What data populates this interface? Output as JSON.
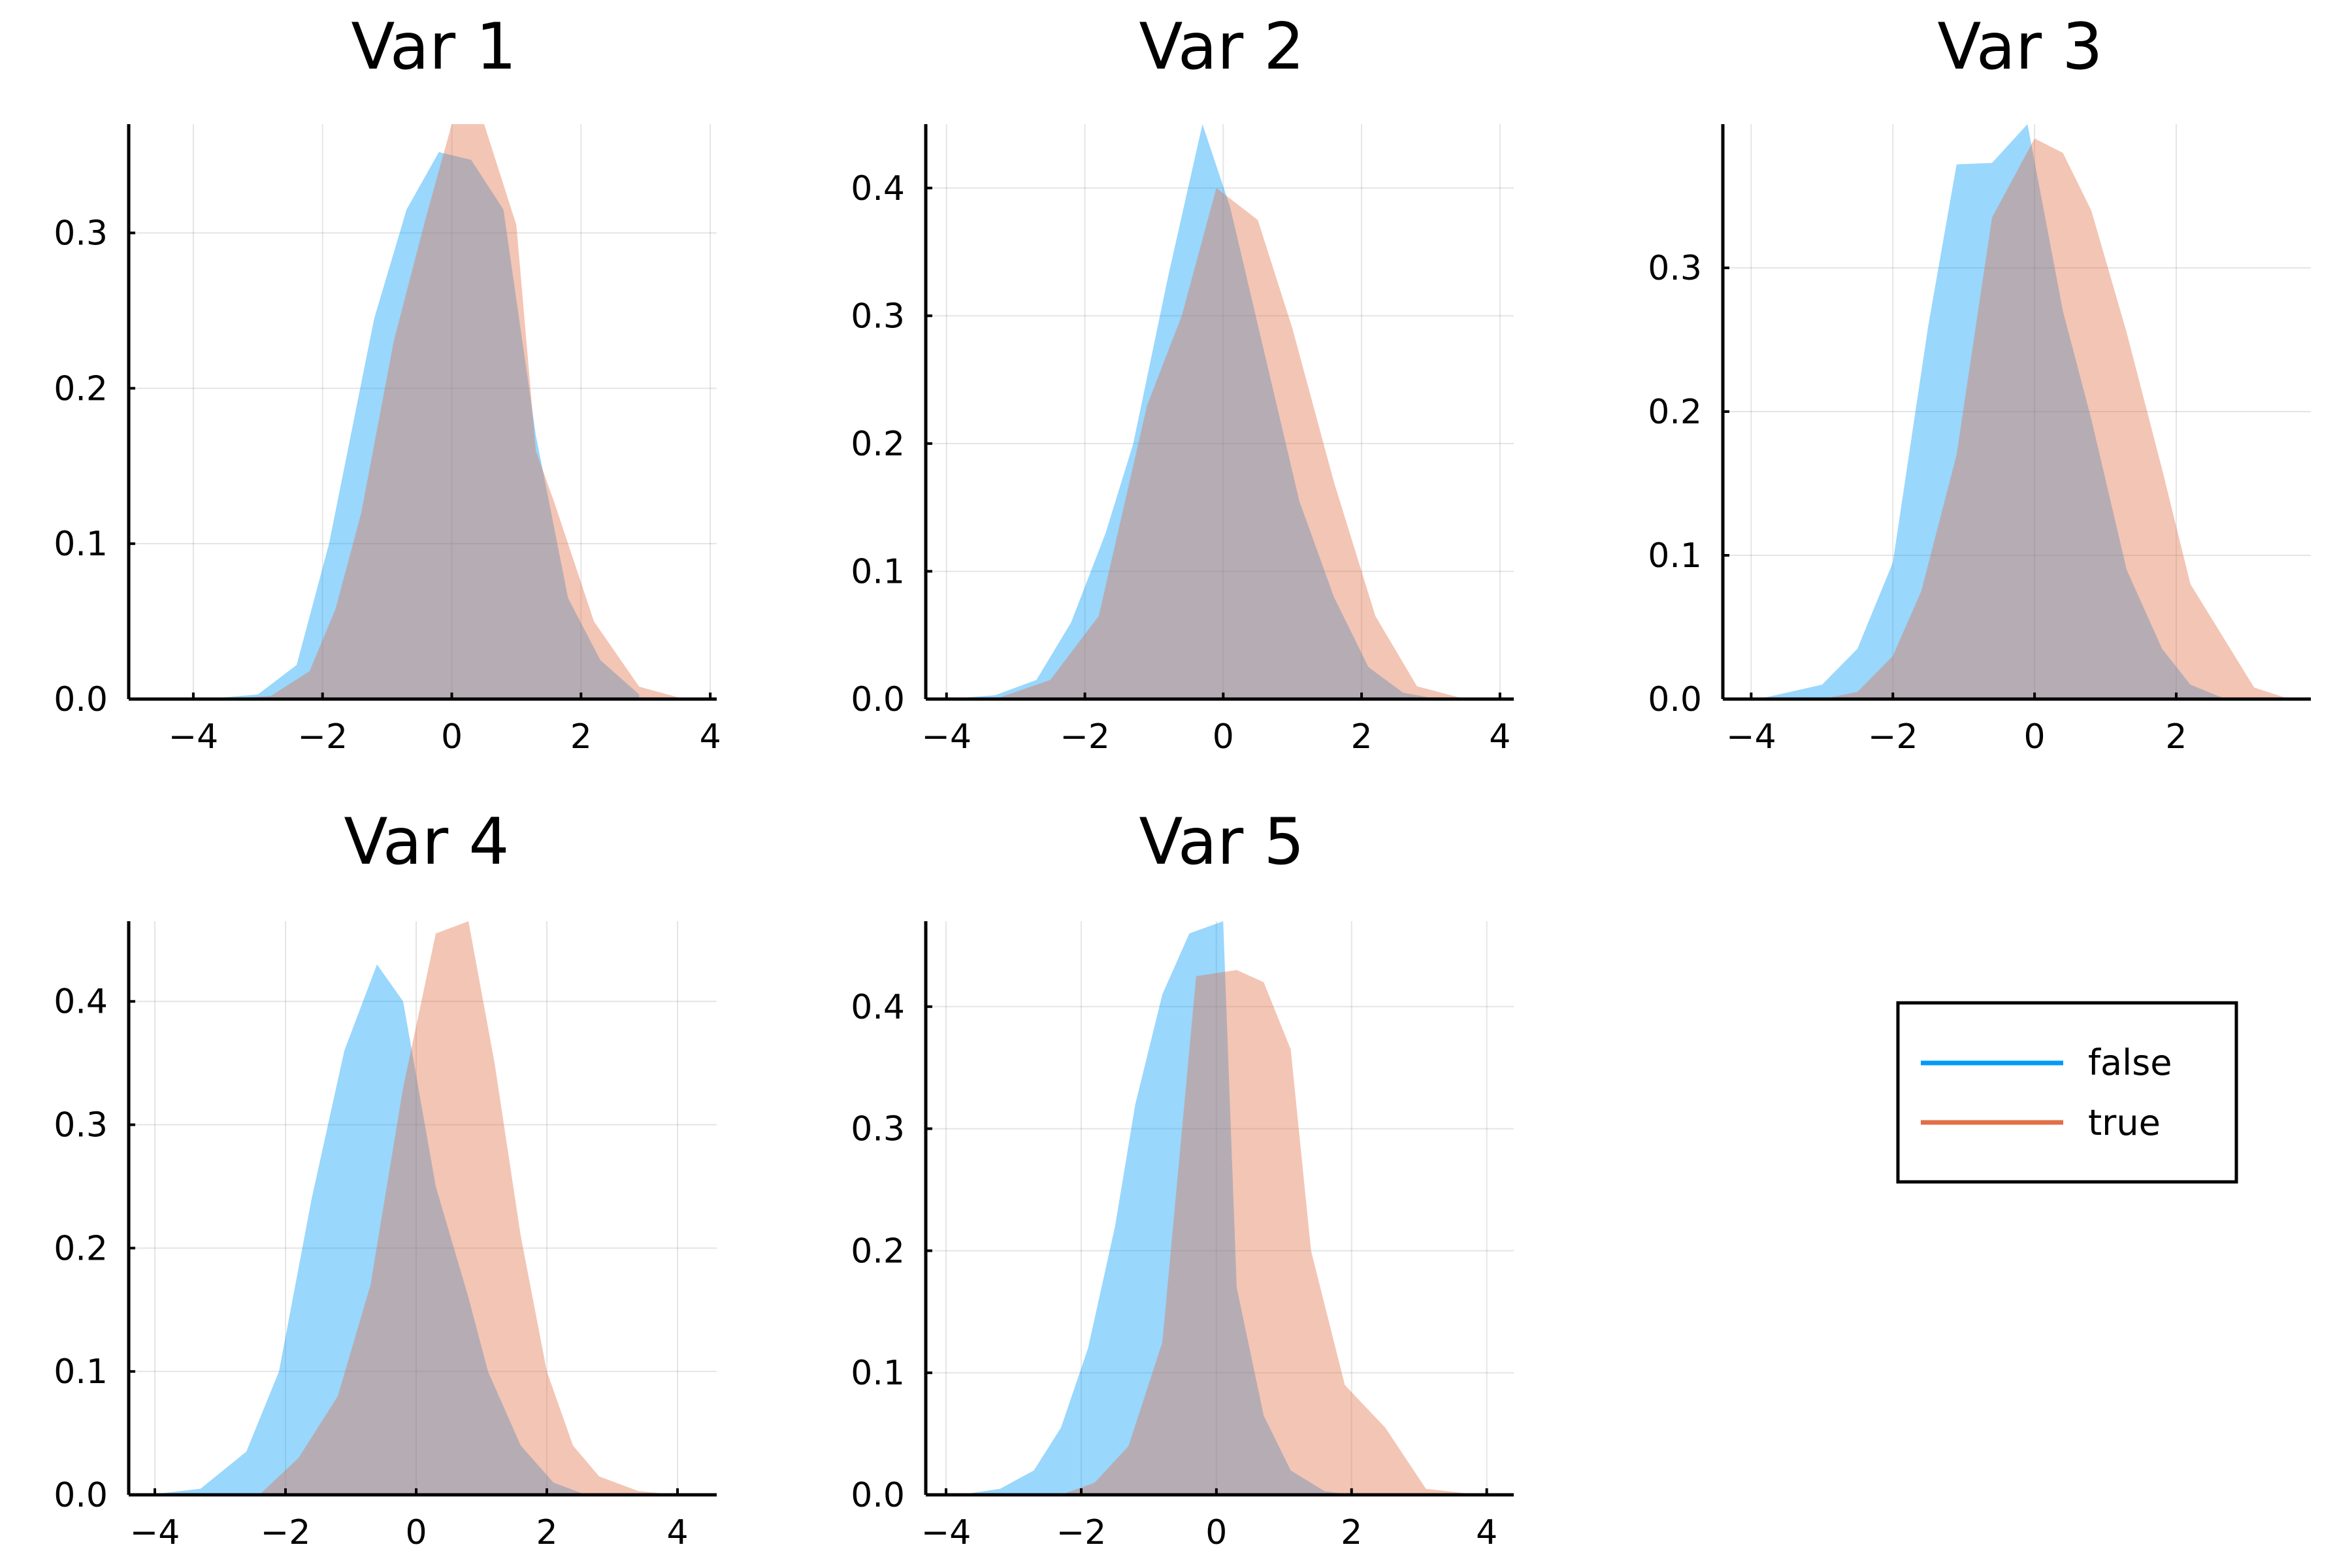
{
  "colors": {
    "false": "#009AF9",
    "true": "#E26F46"
  },
  "legend": {
    "entries": [
      {
        "label": "false",
        "color": "#009AF9"
      },
      {
        "label": "true",
        "color": "#E26F46"
      }
    ],
    "placement": "right of bottom row"
  },
  "chart_data": [
    {
      "type": "area",
      "title": "Var 1",
      "xlim": [
        -5,
        4.1
      ],
      "ylim": [
        0,
        0.37
      ],
      "xticks": [
        -4,
        -2,
        0,
        2,
        4
      ],
      "xtick_labels": [
        "−4",
        "−2",
        "0",
        "2",
        "4"
      ],
      "yticks": [
        0,
        0.1,
        0.2,
        0.3
      ],
      "ytick_labels": [
        "0.0",
        "0.1",
        "0.2",
        "0.3"
      ],
      "grid": true,
      "series": [
        {
          "name": "false",
          "color": "#009AF9",
          "x": [
            -3.8,
            -3.0,
            -2.4,
            -1.9,
            -1.2,
            -0.7,
            -0.2,
            0.3,
            0.8,
            1.3,
            1.8,
            2.3,
            2.9
          ],
          "y": [
            0.0,
            0.003,
            0.022,
            0.1,
            0.245,
            0.315,
            0.352,
            0.347,
            0.315,
            0.17,
            0.065,
            0.025,
            0.003
          ]
        },
        {
          "name": "true",
          "color": "#E26F46",
          "x": [
            -3.5,
            -2.8,
            -2.2,
            -1.8,
            -1.4,
            -0.9,
            -0.4,
            0.0,
            0.5,
            1.0,
            1.3,
            1.6,
            2.2,
            2.9,
            3.6
          ],
          "y": [
            0.0,
            0.002,
            0.018,
            0.058,
            0.12,
            0.23,
            0.31,
            0.37,
            0.37,
            0.305,
            0.16,
            0.125,
            0.05,
            0.008,
            0.0
          ]
        }
      ]
    },
    {
      "type": "area",
      "title": "Var 2",
      "xlim": [
        -4.3,
        4.2
      ],
      "ylim": [
        0,
        0.45
      ],
      "xticks": [
        -4,
        -2,
        0,
        2,
        4
      ],
      "xtick_labels": [
        "−4",
        "−2",
        "0",
        "2",
        "4"
      ],
      "yticks": [
        0,
        0.1,
        0.2,
        0.3,
        0.4
      ],
      "ytick_labels": [
        "0.0",
        "0.1",
        "0.2",
        "0.3",
        "0.4"
      ],
      "grid": true,
      "series": [
        {
          "name": "false",
          "color": "#009AF9",
          "x": [
            -4.0,
            -3.3,
            -2.7,
            -2.2,
            -1.7,
            -1.3,
            -0.8,
            -0.3,
            0.1,
            0.6,
            1.1,
            1.6,
            2.1,
            2.6,
            3.1
          ],
          "y": [
            0.0,
            0.003,
            0.015,
            0.06,
            0.13,
            0.2,
            0.33,
            0.45,
            0.385,
            0.27,
            0.155,
            0.08,
            0.025,
            0.005,
            0.0
          ]
        },
        {
          "name": "true",
          "color": "#E26F46",
          "x": [
            -3.3,
            -2.5,
            -1.8,
            -1.1,
            -0.6,
            -0.1,
            0.5,
            1.0,
            1.6,
            2.2,
            2.8,
            3.5
          ],
          "y": [
            0.0,
            0.015,
            0.065,
            0.23,
            0.3,
            0.4,
            0.375,
            0.29,
            0.17,
            0.065,
            0.01,
            0.0
          ]
        }
      ]
    },
    {
      "type": "area",
      "title": "Var 3",
      "xlim": [
        -4.4,
        3.9
      ],
      "ylim": [
        0,
        0.4
      ],
      "xticks": [
        -4,
        -2,
        0,
        2
      ],
      "xtick_labels": [
        "−4",
        "−2",
        "0",
        "2"
      ],
      "yticks": [
        0,
        0.1,
        0.2,
        0.3
      ],
      "ytick_labels": [
        "0.0",
        "0.1",
        "0.2",
        "0.3"
      ],
      "grid": true,
      "series": [
        {
          "name": "false",
          "color": "#009AF9",
          "x": [
            -3.9,
            -3.0,
            -2.5,
            -2.0,
            -1.5,
            -1.1,
            -0.6,
            -0.1,
            0.4,
            0.8,
            1.3,
            1.8,
            2.2,
            2.7
          ],
          "y": [
            0.0,
            0.01,
            0.035,
            0.095,
            0.26,
            0.372,
            0.373,
            0.4,
            0.27,
            0.195,
            0.09,
            0.035,
            0.01,
            0.0
          ]
        },
        {
          "name": "true",
          "color": "#E26F46",
          "x": [
            -3.0,
            -2.5,
            -2.0,
            -1.6,
            -1.1,
            -0.6,
            0.0,
            0.4,
            0.8,
            1.3,
            1.8,
            2.2,
            2.7,
            3.1,
            3.6
          ],
          "y": [
            0.0,
            0.005,
            0.03,
            0.075,
            0.17,
            0.335,
            0.39,
            0.38,
            0.34,
            0.255,
            0.16,
            0.08,
            0.04,
            0.008,
            0.0
          ]
        }
      ]
    },
    {
      "type": "area",
      "title": "Var 4",
      "xlim": [
        -4.4,
        4.6
      ],
      "ylim": [
        0,
        0.465
      ],
      "xticks": [
        -4,
        -2,
        0,
        2,
        4
      ],
      "xtick_labels": [
        "−4",
        "−2",
        "0",
        "2",
        "4"
      ],
      "yticks": [
        0,
        0.1,
        0.2,
        0.3,
        0.4
      ],
      "ytick_labels": [
        "0.0",
        "0.1",
        "0.2",
        "0.3",
        "0.4"
      ],
      "grid": true,
      "series": [
        {
          "name": "false",
          "color": "#009AF9",
          "x": [
            -4.1,
            -3.3,
            -2.6,
            -2.1,
            -1.6,
            -1.1,
            -0.6,
            -0.2,
            0.3,
            0.8,
            1.1,
            1.6,
            2.1,
            2.6
          ],
          "y": [
            0.0,
            0.005,
            0.035,
            0.1,
            0.24,
            0.36,
            0.43,
            0.4,
            0.25,
            0.16,
            0.1,
            0.04,
            0.01,
            0.0
          ]
        },
        {
          "name": "true",
          "color": "#E26F46",
          "x": [
            -2.4,
            -1.8,
            -1.2,
            -0.7,
            -0.2,
            0.3,
            0.8,
            1.2,
            1.6,
            2.0,
            2.4,
            2.8,
            3.4,
            4.0
          ],
          "y": [
            0.0,
            0.03,
            0.08,
            0.17,
            0.33,
            0.455,
            0.465,
            0.35,
            0.21,
            0.1,
            0.04,
            0.015,
            0.003,
            0.0
          ]
        }
      ]
    },
    {
      "type": "area",
      "title": "Var 5",
      "xlim": [
        -4.3,
        4.4
      ],
      "ylim": [
        0,
        0.47
      ],
      "xticks": [
        -4,
        -2,
        0,
        2,
        4
      ],
      "xtick_labels": [
        "−4",
        "−2",
        "0",
        "2",
        "4"
      ],
      "yticks": [
        0,
        0.1,
        0.2,
        0.3,
        0.4
      ],
      "ytick_labels": [
        "0.0",
        "0.1",
        "0.2",
        "0.3",
        "0.4"
      ],
      "grid": true,
      "series": [
        {
          "name": "false",
          "color": "#009AF9",
          "x": [
            -3.8,
            -3.2,
            -2.7,
            -2.3,
            -1.9,
            -1.5,
            -1.2,
            -0.8,
            -0.4,
            0.1,
            0.3,
            0.7,
            1.1,
            1.6,
            2.0
          ],
          "y": [
            0.0,
            0.005,
            0.02,
            0.055,
            0.12,
            0.22,
            0.32,
            0.41,
            0.46,
            0.47,
            0.17,
            0.065,
            0.02,
            0.003,
            0.0
          ]
        },
        {
          "name": "true",
          "color": "#E26F46",
          "x": [
            -2.3,
            -1.8,
            -1.3,
            -0.8,
            -0.3,
            0.3,
            0.7,
            1.1,
            1.4,
            1.9,
            2.5,
            3.1,
            3.9
          ],
          "y": [
            0.0,
            0.01,
            0.04,
            0.125,
            0.425,
            0.43,
            0.42,
            0.365,
            0.2,
            0.09,
            0.055,
            0.005,
            0.0
          ]
        }
      ]
    }
  ]
}
